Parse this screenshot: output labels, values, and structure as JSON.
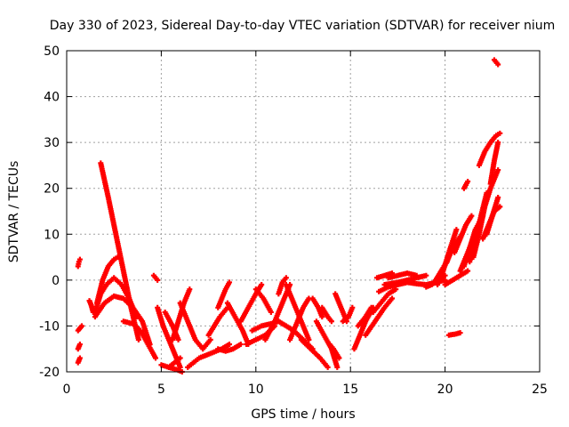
{
  "chart_data": {
    "type": "scatter",
    "title": "Day 330 of 2023, Sidereal Day-to-day VTEC variation (SDTVAR) for receiver nium",
    "xlabel": "GPS time / hours",
    "ylabel": "SDTVAR / TECUs",
    "xlim": [
      0,
      25
    ],
    "ylim": [
      -20,
      50
    ],
    "xticks": [
      0,
      5,
      10,
      15,
      20,
      25
    ],
    "yticks": [
      -20,
      -10,
      0,
      10,
      20,
      30,
      40,
      50
    ],
    "grid": true,
    "marker": "plus",
    "color": "#ff0000",
    "series": [
      {
        "name": "s1",
        "x": [
          0.6,
          0.65,
          0.7
        ],
        "y": [
          3,
          4,
          4.5
        ]
      },
      {
        "name": "s2",
        "x": [
          0.6,
          0.7,
          0.8
        ],
        "y": [
          -11,
          -10.5,
          -10
        ]
      },
      {
        "name": "s3",
        "x": [
          0.6,
          0.7
        ],
        "y": [
          -15,
          -14
        ]
      },
      {
        "name": "s4",
        "x": [
          0.6,
          0.7
        ],
        "y": [
          -18,
          -17
        ]
      },
      {
        "name": "s5",
        "x": [
          1.2,
          1.3,
          1.4
        ],
        "y": [
          -4.5,
          -5.5,
          -7
        ]
      },
      {
        "name": "s6",
        "x": [
          1.8,
          2.2,
          2.6,
          3.0,
          3.4,
          3.8
        ],
        "y": [
          25.5,
          18,
          10,
          2,
          -6,
          -13
        ]
      },
      {
        "name": "s7",
        "x": [
          1.6,
          1.9,
          2.2,
          2.5,
          2.7
        ],
        "y": [
          -5,
          0,
          3,
          4.5,
          5
        ]
      },
      {
        "name": "s8",
        "x": [
          1.5,
          1.8,
          2.1,
          2.5,
          2.9,
          3.3,
          3.7
        ],
        "y": [
          -7,
          -3,
          -1,
          0.5,
          -1,
          -4,
          -8
        ]
      },
      {
        "name": "s9",
        "x": [
          1.5,
          2.0,
          2.5,
          3.0,
          3.5,
          4.0,
          4.4
        ],
        "y": [
          -8,
          -5,
          -3.5,
          -4,
          -6,
          -9,
          -14
        ]
      },
      {
        "name": "s10",
        "x": [
          3.0,
          3.5,
          3.9,
          4.3,
          4.7
        ],
        "y": [
          -9,
          -9.5,
          -11,
          -14,
          -17
        ]
      },
      {
        "name": "s11",
        "x": [
          4.6,
          4.8
        ],
        "y": [
          1,
          0
        ]
      },
      {
        "name": "s12",
        "x": [
          4.8,
          5.1,
          5.4,
          5.7,
          6.0
        ],
        "y": [
          -6,
          -10,
          -13,
          -16,
          -19
        ]
      },
      {
        "name": "s13",
        "x": [
          5.0,
          5.4,
          5.8,
          6.1
        ],
        "y": [
          -18.5,
          -19,
          -19.5,
          -20
        ]
      },
      {
        "name": "s14",
        "x": [
          5.2,
          5.6,
          5.9
        ],
        "y": [
          -7,
          -10,
          -13
        ]
      },
      {
        "name": "s15",
        "x": [
          5.4,
          5.7,
          6.0
        ],
        "y": [
          -19,
          -18,
          -17
        ]
      },
      {
        "name": "s16",
        "x": [
          5.6,
          5.9,
          6.2,
          6.5
        ],
        "y": [
          -13,
          -9,
          -5,
          -2
        ]
      },
      {
        "name": "s17",
        "x": [
          6.0,
          6.4,
          6.8,
          7.2,
          7.6
        ],
        "y": [
          -5,
          -9,
          -13,
          -15,
          -13
        ]
      },
      {
        "name": "s18",
        "x": [
          6.4,
          7.0,
          7.6,
          8.2,
          8.6
        ],
        "y": [
          -19,
          -17,
          -16,
          -15,
          -14
        ]
      },
      {
        "name": "s19",
        "x": [
          7.5,
          7.8,
          8.1,
          8.5
        ],
        "y": [
          -12,
          -10,
          -8,
          -6
        ]
      },
      {
        "name": "s20",
        "x": [
          8.0,
          8.2,
          8.4,
          8.6
        ],
        "y": [
          -6,
          -4,
          -2,
          -0.5
        ]
      },
      {
        "name": "s21",
        "x": [
          8.0,
          8.4,
          8.8,
          9.2
        ],
        "y": [
          -15,
          -15.5,
          -15,
          -14
        ]
      },
      {
        "name": "s22",
        "x": [
          8.5,
          8.9,
          9.3,
          9.6
        ],
        "y": [
          -5,
          -8,
          -11,
          -14
        ]
      },
      {
        "name": "s23",
        "x": [
          9.2,
          9.6,
          10.0,
          10.3
        ],
        "y": [
          -9,
          -6,
          -3,
          -1
        ]
      },
      {
        "name": "s24",
        "x": [
          9.5,
          10.0,
          10.5,
          11.0
        ],
        "y": [
          -14,
          -13,
          -12,
          -10
        ]
      },
      {
        "name": "s25",
        "x": [
          9.8,
          10.3,
          10.8,
          11.2
        ],
        "y": [
          -11,
          -10,
          -9.5,
          -9
        ]
      },
      {
        "name": "s26",
        "x": [
          10.0,
          10.4,
          10.8
        ],
        "y": [
          -2,
          -4,
          -7
        ]
      },
      {
        "name": "s27",
        "x": [
          10.5,
          11.0,
          11.4,
          11.8
        ],
        "y": [
          -13,
          -9,
          -5,
          -1
        ]
      },
      {
        "name": "s28",
        "x": [
          11.2,
          11.4,
          11.6
        ],
        "y": [
          -3,
          -0.5,
          0.5
        ]
      },
      {
        "name": "s29",
        "x": [
          11.2,
          11.6,
          12.0,
          12.5,
          13.0
        ],
        "y": [
          -9,
          -10,
          -11,
          -13,
          -15
        ]
      },
      {
        "name": "s30",
        "x": [
          11.6,
          12.0,
          12.4,
          12.8
        ],
        "y": [
          -1,
          -5,
          -9,
          -13
        ]
      },
      {
        "name": "s31",
        "x": [
          11.8,
          12.2,
          12.5,
          12.8
        ],
        "y": [
          -13,
          -9,
          -6,
          -4
        ]
      },
      {
        "name": "s32",
        "x": [
          12.4,
          12.9,
          13.4,
          13.8
        ],
        "y": [
          -13,
          -15,
          -17,
          -19
        ]
      },
      {
        "name": "s33",
        "x": [
          13.0,
          13.3,
          13.5
        ],
        "y": [
          -4,
          -6,
          -8
        ]
      },
      {
        "name": "s34",
        "x": [
          13.2,
          13.6,
          14.0,
          14.3
        ],
        "y": [
          -9,
          -12,
          -15,
          -19
        ]
      },
      {
        "name": "s35",
        "x": [
          13.5,
          13.8,
          14.0
        ],
        "y": [
          -6,
          -8,
          -9
        ]
      },
      {
        "name": "s36",
        "x": [
          13.9,
          14.1,
          14.4
        ],
        "y": [
          -14,
          -15,
          -17
        ]
      },
      {
        "name": "s37",
        "x": [
          14.2,
          14.4,
          14.6,
          14.8
        ],
        "y": [
          -3,
          -5,
          -7,
          -9
        ]
      },
      {
        "name": "s38",
        "x": [
          14.6,
          14.9,
          15.1
        ],
        "y": [
          -9,
          -8,
          -6
        ]
      },
      {
        "name": "s39",
        "x": [
          15.2,
          15.5,
          15.8,
          16.2
        ],
        "y": [
          -15,
          -12,
          -9,
          -6
        ]
      },
      {
        "name": "s40",
        "x": [
          15.4,
          15.8,
          16.1
        ],
        "y": [
          -10,
          -8,
          -6
        ]
      },
      {
        "name": "s41",
        "x": [
          15.8,
          16.3,
          16.8,
          17.2
        ],
        "y": [
          -12,
          -9,
          -6,
          -4
        ]
      },
      {
        "name": "s42",
        "x": [
          16.2,
          16.6,
          17.0,
          17.4
        ],
        "y": [
          -7,
          -5,
          -3,
          -2
        ]
      },
      {
        "name": "s43",
        "x": [
          16.5,
          17.0,
          17.5,
          18.0
        ],
        "y": [
          -2.5,
          -1.5,
          -1,
          -0.5
        ]
      },
      {
        "name": "s44",
        "x": [
          16.4,
          16.8,
          17.2
        ],
        "y": [
          0.5,
          1,
          1.5
        ]
      },
      {
        "name": "s45",
        "x": [
          16.8,
          17.5,
          18.0,
          18.5,
          19.0
        ],
        "y": [
          -1,
          -0.5,
          0,
          0.5,
          1
        ]
      },
      {
        "name": "s46",
        "x": [
          17.0,
          17.5,
          18.0,
          18.5
        ],
        "y": [
          0.5,
          1,
          1.5,
          1
        ]
      },
      {
        "name": "s47",
        "x": [
          18.0,
          18.5,
          19.0,
          19.5,
          20.0
        ],
        "y": [
          -0.5,
          -0.8,
          -1,
          -0.5,
          0
        ]
      },
      {
        "name": "s48",
        "x": [
          19.0,
          19.3,
          19.6,
          20.0
        ],
        "y": [
          -1.5,
          -1,
          0,
          1
        ]
      },
      {
        "name": "s49",
        "x": [
          19.5,
          19.8,
          20.1
        ],
        "y": [
          0,
          2,
          4
        ]
      },
      {
        "name": "s50",
        "x": [
          19.6,
          19.9,
          20.2,
          20.6
        ],
        "y": [
          -1,
          2,
          6,
          11
        ]
      },
      {
        "name": "s51",
        "x": [
          19.8,
          20.1,
          20.4,
          20.8
        ],
        "y": [
          2,
          4,
          7,
          9.5
        ]
      },
      {
        "name": "s52",
        "x": [
          20.2,
          20.5,
          20.8
        ],
        "y": [
          -12,
          -11.8,
          -11.5
        ]
      },
      {
        "name": "s53",
        "x": [
          20.0,
          20.4,
          20.8,
          21.2
        ],
        "y": [
          -1,
          0,
          1,
          2
        ]
      },
      {
        "name": "s54",
        "x": [
          20.5,
          20.8,
          21.1,
          21.4
        ],
        "y": [
          6,
          9,
          12,
          14
        ]
      },
      {
        "name": "s55",
        "x": [
          20.8,
          21.1,
          21.4,
          21.7
        ],
        "y": [
          2,
          5,
          8,
          10
        ]
      },
      {
        "name": "s56",
        "x": [
          21.0,
          21.3,
          21.6,
          22.0
        ],
        "y": [
          3,
          7,
          11,
          14
        ]
      },
      {
        "name": "s57",
        "x": [
          21.0,
          21.2
        ],
        "y": [
          20,
          21.5
        ]
      },
      {
        "name": "s58",
        "x": [
          21.3,
          21.6,
          21.9,
          22.2
        ],
        "y": [
          4,
          9,
          14,
          19
        ]
      },
      {
        "name": "s59",
        "x": [
          21.5,
          21.8,
          22.1,
          22.4,
          22.8
        ],
        "y": [
          5,
          10,
          16,
          20,
          24
        ]
      },
      {
        "name": "s60",
        "x": [
          21.8,
          22.1,
          22.4,
          22.7,
          22.9
        ],
        "y": [
          25,
          28,
          30,
          31.5,
          32
        ]
      },
      {
        "name": "s61",
        "x": [
          22.0,
          22.3,
          22.6,
          22.9
        ],
        "y": [
          9,
          12,
          15,
          16
        ]
      },
      {
        "name": "s62",
        "x": [
          22.2,
          22.5,
          22.8
        ],
        "y": [
          10,
          14,
          18
        ]
      },
      {
        "name": "s63",
        "x": [
          22.4,
          22.6,
          22.8
        ],
        "y": [
          21,
          26,
          30
        ]
      },
      {
        "name": "s64",
        "x": [
          22.6,
          22.8
        ],
        "y": [
          48,
          47
        ]
      }
    ]
  }
}
